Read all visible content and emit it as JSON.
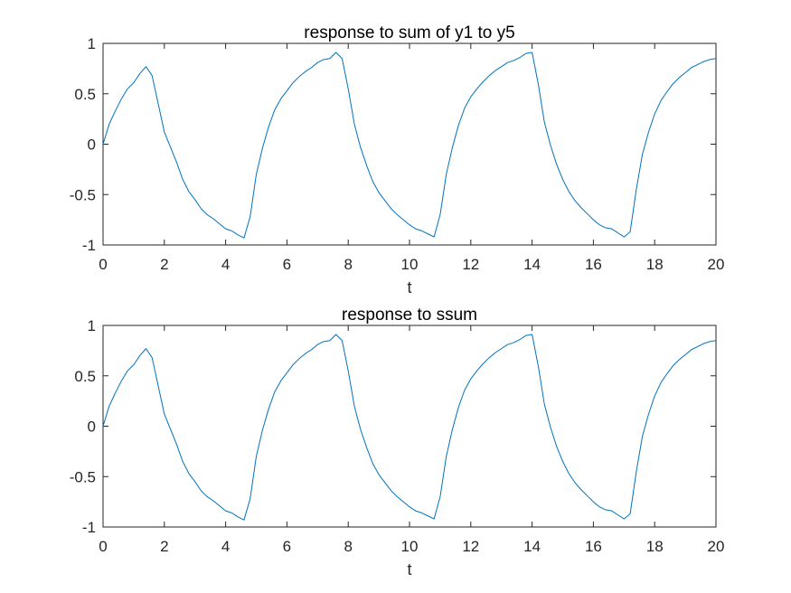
{
  "chart_data": [
    {
      "type": "line",
      "title": "response to sum of y1 to y5",
      "xlabel": "t",
      "ylabel": "",
      "xlim": [
        0,
        20
      ],
      "ylim": [
        -1,
        1
      ],
      "xticks": [
        0,
        2,
        4,
        6,
        8,
        10,
        12,
        14,
        16,
        18,
        20
      ],
      "xtick_labels": [
        "0",
        "2",
        "4",
        "6",
        "8",
        "10",
        "12",
        "14",
        "16",
        "18",
        "20"
      ],
      "yticks": [
        -1,
        -0.5,
        0,
        0.5,
        1
      ],
      "ytick_labels": [
        "-1",
        "-0.5",
        "0",
        "0.5",
        "1"
      ],
      "grid": false,
      "series": [
        {
          "color": "#0072BD",
          "x": [
            0,
            0.2,
            0.4,
            0.6,
            0.8,
            1.0,
            1.2,
            1.4,
            1.6,
            1.8,
            2.0,
            2.2,
            2.4,
            2.6,
            2.8,
            3.0,
            3.2,
            3.4,
            3.6,
            3.8,
            4.0,
            4.2,
            4.4,
            4.6,
            4.8,
            5.0,
            5.2,
            5.4,
            5.6,
            5.8,
            6.0,
            6.2,
            6.4,
            6.6,
            6.8,
            7.0,
            7.2,
            7.4,
            7.6,
            7.8,
            8.0,
            8.2,
            8.4,
            8.6,
            8.8,
            9.0,
            9.2,
            9.4,
            9.6,
            9.8,
            10.0,
            10.2,
            10.4,
            10.6,
            10.8,
            11.0,
            11.2,
            11.4,
            11.6,
            11.8,
            12.0,
            12.2,
            12.4,
            12.6,
            12.8,
            13.0,
            13.2,
            13.4,
            13.6,
            13.8,
            14.0,
            14.2,
            14.4,
            14.6,
            14.8,
            15.0,
            15.2,
            15.4,
            15.6,
            15.8,
            16.0,
            16.2,
            16.4,
            16.6,
            16.8,
            17.0,
            17.2,
            17.4,
            17.6,
            17.8,
            18.0,
            18.2,
            18.4,
            18.6,
            18.8,
            19.0,
            19.2,
            19.4,
            19.6,
            19.8,
            20.0
          ],
          "y": [
            0.0,
            0.2,
            0.33,
            0.45,
            0.55,
            0.61,
            0.7,
            0.77,
            0.68,
            0.4,
            0.12,
            -0.03,
            -0.18,
            -0.35,
            -0.47,
            -0.55,
            -0.64,
            -0.7,
            -0.74,
            -0.79,
            -0.84,
            -0.86,
            -0.9,
            -0.93,
            -0.72,
            -0.3,
            -0.04,
            0.17,
            0.34,
            0.45,
            0.53,
            0.61,
            0.67,
            0.72,
            0.76,
            0.81,
            0.84,
            0.85,
            0.91,
            0.85,
            0.55,
            0.2,
            -0.03,
            -0.21,
            -0.37,
            -0.48,
            -0.56,
            -0.64,
            -0.7,
            -0.75,
            -0.8,
            -0.84,
            -0.86,
            -0.89,
            -0.92,
            -0.7,
            -0.3,
            -0.03,
            0.19,
            0.36,
            0.47,
            0.55,
            0.62,
            0.68,
            0.73,
            0.77,
            0.81,
            0.83,
            0.86,
            0.9,
            0.91,
            0.6,
            0.22,
            -0.01,
            -0.2,
            -0.35,
            -0.47,
            -0.56,
            -0.63,
            -0.69,
            -0.75,
            -0.8,
            -0.83,
            -0.84,
            -0.88,
            -0.92,
            -0.87,
            -0.45,
            -0.1,
            0.12,
            0.3,
            0.43,
            0.52,
            0.6,
            0.66,
            0.71,
            0.76,
            0.79,
            0.82,
            0.84,
            0.85
          ]
        }
      ]
    },
    {
      "type": "line",
      "title": "response to ssum",
      "xlabel": "t",
      "ylabel": "",
      "xlim": [
        0,
        20
      ],
      "ylim": [
        -1,
        1
      ],
      "xticks": [
        0,
        2,
        4,
        6,
        8,
        10,
        12,
        14,
        16,
        18,
        20
      ],
      "xtick_labels": [
        "0",
        "2",
        "4",
        "6",
        "8",
        "10",
        "12",
        "14",
        "16",
        "18",
        "20"
      ],
      "yticks": [
        -1,
        -0.5,
        0,
        0.5,
        1
      ],
      "ytick_labels": [
        "-1",
        "-0.5",
        "0",
        "0.5",
        "1"
      ],
      "grid": false,
      "series": [
        {
          "color": "#0072BD",
          "x": [
            0,
            0.2,
            0.4,
            0.6,
            0.8,
            1.0,
            1.2,
            1.4,
            1.6,
            1.8,
            2.0,
            2.2,
            2.4,
            2.6,
            2.8,
            3.0,
            3.2,
            3.4,
            3.6,
            3.8,
            4.0,
            4.2,
            4.4,
            4.6,
            4.8,
            5.0,
            5.2,
            5.4,
            5.6,
            5.8,
            6.0,
            6.2,
            6.4,
            6.6,
            6.8,
            7.0,
            7.2,
            7.4,
            7.6,
            7.8,
            8.0,
            8.2,
            8.4,
            8.6,
            8.8,
            9.0,
            9.2,
            9.4,
            9.6,
            9.8,
            10.0,
            10.2,
            10.4,
            10.6,
            10.8,
            11.0,
            11.2,
            11.4,
            11.6,
            11.8,
            12.0,
            12.2,
            12.4,
            12.6,
            12.8,
            13.0,
            13.2,
            13.4,
            13.6,
            13.8,
            14.0,
            14.2,
            14.4,
            14.6,
            14.8,
            15.0,
            15.2,
            15.4,
            15.6,
            15.8,
            16.0,
            16.2,
            16.4,
            16.6,
            16.8,
            17.0,
            17.2,
            17.4,
            17.6,
            17.8,
            18.0,
            18.2,
            18.4,
            18.6,
            18.8,
            19.0,
            19.2,
            19.4,
            19.6,
            19.8,
            20.0
          ],
          "y": [
            0.0,
            0.2,
            0.33,
            0.45,
            0.55,
            0.61,
            0.7,
            0.77,
            0.68,
            0.4,
            0.12,
            -0.03,
            -0.18,
            -0.35,
            -0.47,
            -0.55,
            -0.64,
            -0.7,
            -0.74,
            -0.79,
            -0.84,
            -0.86,
            -0.9,
            -0.93,
            -0.72,
            -0.3,
            -0.04,
            0.17,
            0.34,
            0.45,
            0.53,
            0.61,
            0.67,
            0.72,
            0.76,
            0.81,
            0.84,
            0.85,
            0.91,
            0.85,
            0.55,
            0.2,
            -0.03,
            -0.21,
            -0.37,
            -0.48,
            -0.56,
            -0.64,
            -0.7,
            -0.75,
            -0.8,
            -0.84,
            -0.86,
            -0.89,
            -0.92,
            -0.7,
            -0.3,
            -0.03,
            0.19,
            0.36,
            0.47,
            0.55,
            0.62,
            0.68,
            0.73,
            0.77,
            0.81,
            0.83,
            0.86,
            0.9,
            0.91,
            0.6,
            0.22,
            -0.01,
            -0.2,
            -0.35,
            -0.47,
            -0.56,
            -0.63,
            -0.69,
            -0.75,
            -0.8,
            -0.83,
            -0.84,
            -0.88,
            -0.92,
            -0.87,
            -0.45,
            -0.1,
            0.12,
            0.3,
            0.43,
            0.52,
            0.6,
            0.66,
            0.71,
            0.76,
            0.79,
            0.82,
            0.84,
            0.85
          ]
        }
      ]
    }
  ]
}
